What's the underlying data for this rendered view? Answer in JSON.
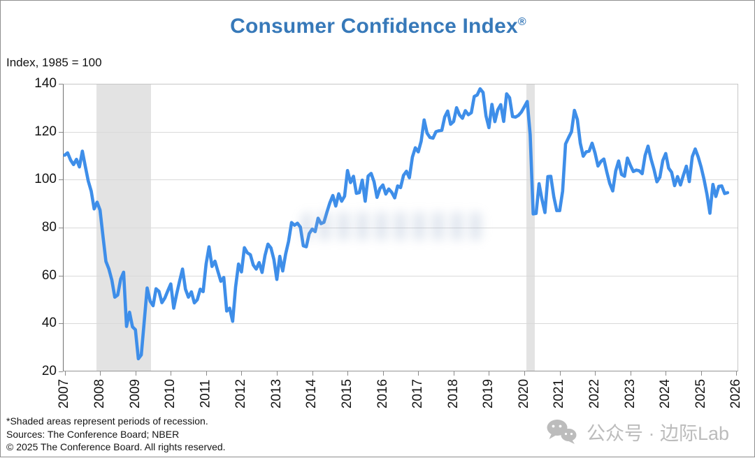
{
  "title": {
    "text": "Consumer Confidence Index",
    "registered_mark": "®"
  },
  "y_axis_title": "Index, 1985 = 100",
  "footnotes": [
    "*Shaded areas represent periods of recession.",
    "Sources: The Conference Board;  NBER",
    "© 2025 The Conference Board. All rights reserved."
  ],
  "watermark": {
    "icon": "wechat-icon",
    "text": "公众号 · 边际Lab"
  },
  "colors": {
    "title_blue": "#3779b9",
    "line_blue": "#3e8ee9",
    "recession_band_gray": "#e3e3e3",
    "gridline_gray": "#d9d9d9",
    "watermark_gray": "#bcbcbc"
  },
  "chart_data": {
    "type": "line",
    "title": "Consumer Confidence Index®",
    "ylabel": "Index, 1985 = 100",
    "xlabel": "",
    "grid": "horizontal",
    "legend_position": "none",
    "xlim": [
      2006.95,
      2026.05
    ],
    "ylim": [
      20,
      140
    ],
    "x_ticks": [
      2007,
      2008,
      2009,
      2010,
      2011,
      2012,
      2013,
      2014,
      2015,
      2016,
      2017,
      2018,
      2019,
      2020,
      2021,
      2022,
      2023,
      2024,
      2025,
      2026
    ],
    "y_ticks": [
      20,
      40,
      60,
      80,
      100,
      120,
      140
    ],
    "recession_bands": [
      {
        "from": 2007.9,
        "to": 2009.45
      },
      {
        "from": 2020.05,
        "to": 2020.3
      }
    ],
    "series": [
      {
        "name": "Consumer Confidence Index (monthly)",
        "x_start_year": 2007,
        "frequency": "monthly",
        "values": [
          110.2,
          111.2,
          108.2,
          106.3,
          108.5,
          105.3,
          111.9,
          105.6,
          99.5,
          95.2,
          87.8,
          90.6,
          87.3,
          76.4,
          65.9,
          62.8,
          58.1,
          51.0,
          51.9,
          58.5,
          61.4,
          38.8,
          44.7,
          38.6,
          37.4,
          25.3,
          26.9,
          40.8,
          54.8,
          49.3,
          47.4,
          54.5,
          53.4,
          48.7,
          50.6,
          53.6,
          56.5,
          46.4,
          52.3,
          57.7,
          62.7,
          54.3,
          51.0,
          53.2,
          48.6,
          49.9,
          54.3,
          53.3,
          64.8,
          72.0,
          63.8,
          66.0,
          61.7,
          57.6,
          59.2,
          45.2,
          46.4,
          40.9,
          55.2,
          64.8,
          61.5,
          71.6,
          69.5,
          68.7,
          64.4,
          62.7,
          65.4,
          61.3,
          68.4,
          73.1,
          71.5,
          66.7,
          58.4,
          68.0,
          61.9,
          69.0,
          74.3,
          82.1,
          81.0,
          81.8,
          80.2,
          72.4,
          72.0,
          77.5,
          79.4,
          78.3,
          83.9,
          81.7,
          82.2,
          86.4,
          90.3,
          93.4,
          89.0,
          94.1,
          91.0,
          93.1,
          103.8,
          98.8,
          101.4,
          94.3,
          94.6,
          99.8,
          91.0,
          101.5,
          102.6,
          99.1,
          92.6,
          96.3,
          97.8,
          94.0,
          96.1,
          94.7,
          92.4,
          97.4,
          96.7,
          101.8,
          103.5,
          100.8,
          109.4,
          113.3,
          111.6,
          116.1,
          124.9,
          119.4,
          117.6,
          117.3,
          120.0,
          120.4,
          120.6,
          126.2,
          128.6,
          123.1,
          124.3,
          130.0,
          127.0,
          125.6,
          128.8,
          127.1,
          127.9,
          134.7,
          135.3,
          137.9,
          136.4,
          126.6,
          121.7,
          131.4,
          124.2,
          129.2,
          131.3,
          124.3,
          135.8,
          134.2,
          126.3,
          126.1,
          126.8,
          128.2,
          130.4,
          132.6,
          118.8,
          85.7,
          85.9,
          98.3,
          91.7,
          86.3,
          101.3,
          101.4,
          92.9,
          87.1,
          87.1,
          95.2,
          114.9,
          117.5,
          120.0,
          128.9,
          125.1,
          115.2,
          109.8,
          111.6,
          111.9,
          115.2,
          111.1,
          105.7,
          107.6,
          108.6,
          103.2,
          98.4,
          95.3,
          103.6,
          107.8,
          102.2,
          101.4,
          109.0,
          106.0,
          103.4,
          104.0,
          103.7,
          102.5,
          110.1,
          114.0,
          108.7,
          104.3,
          99.1,
          101.0,
          108.0,
          110.9,
          104.8,
          103.1,
          97.5,
          101.3,
          97.8,
          101.9,
          105.6,
          99.2,
          109.6,
          112.8,
          109.5,
          105.3,
          100.1,
          93.9,
          86.0,
          98.0,
          93.0,
          97.2,
          97.4,
          94.2,
          94.6
        ]
      }
    ]
  }
}
